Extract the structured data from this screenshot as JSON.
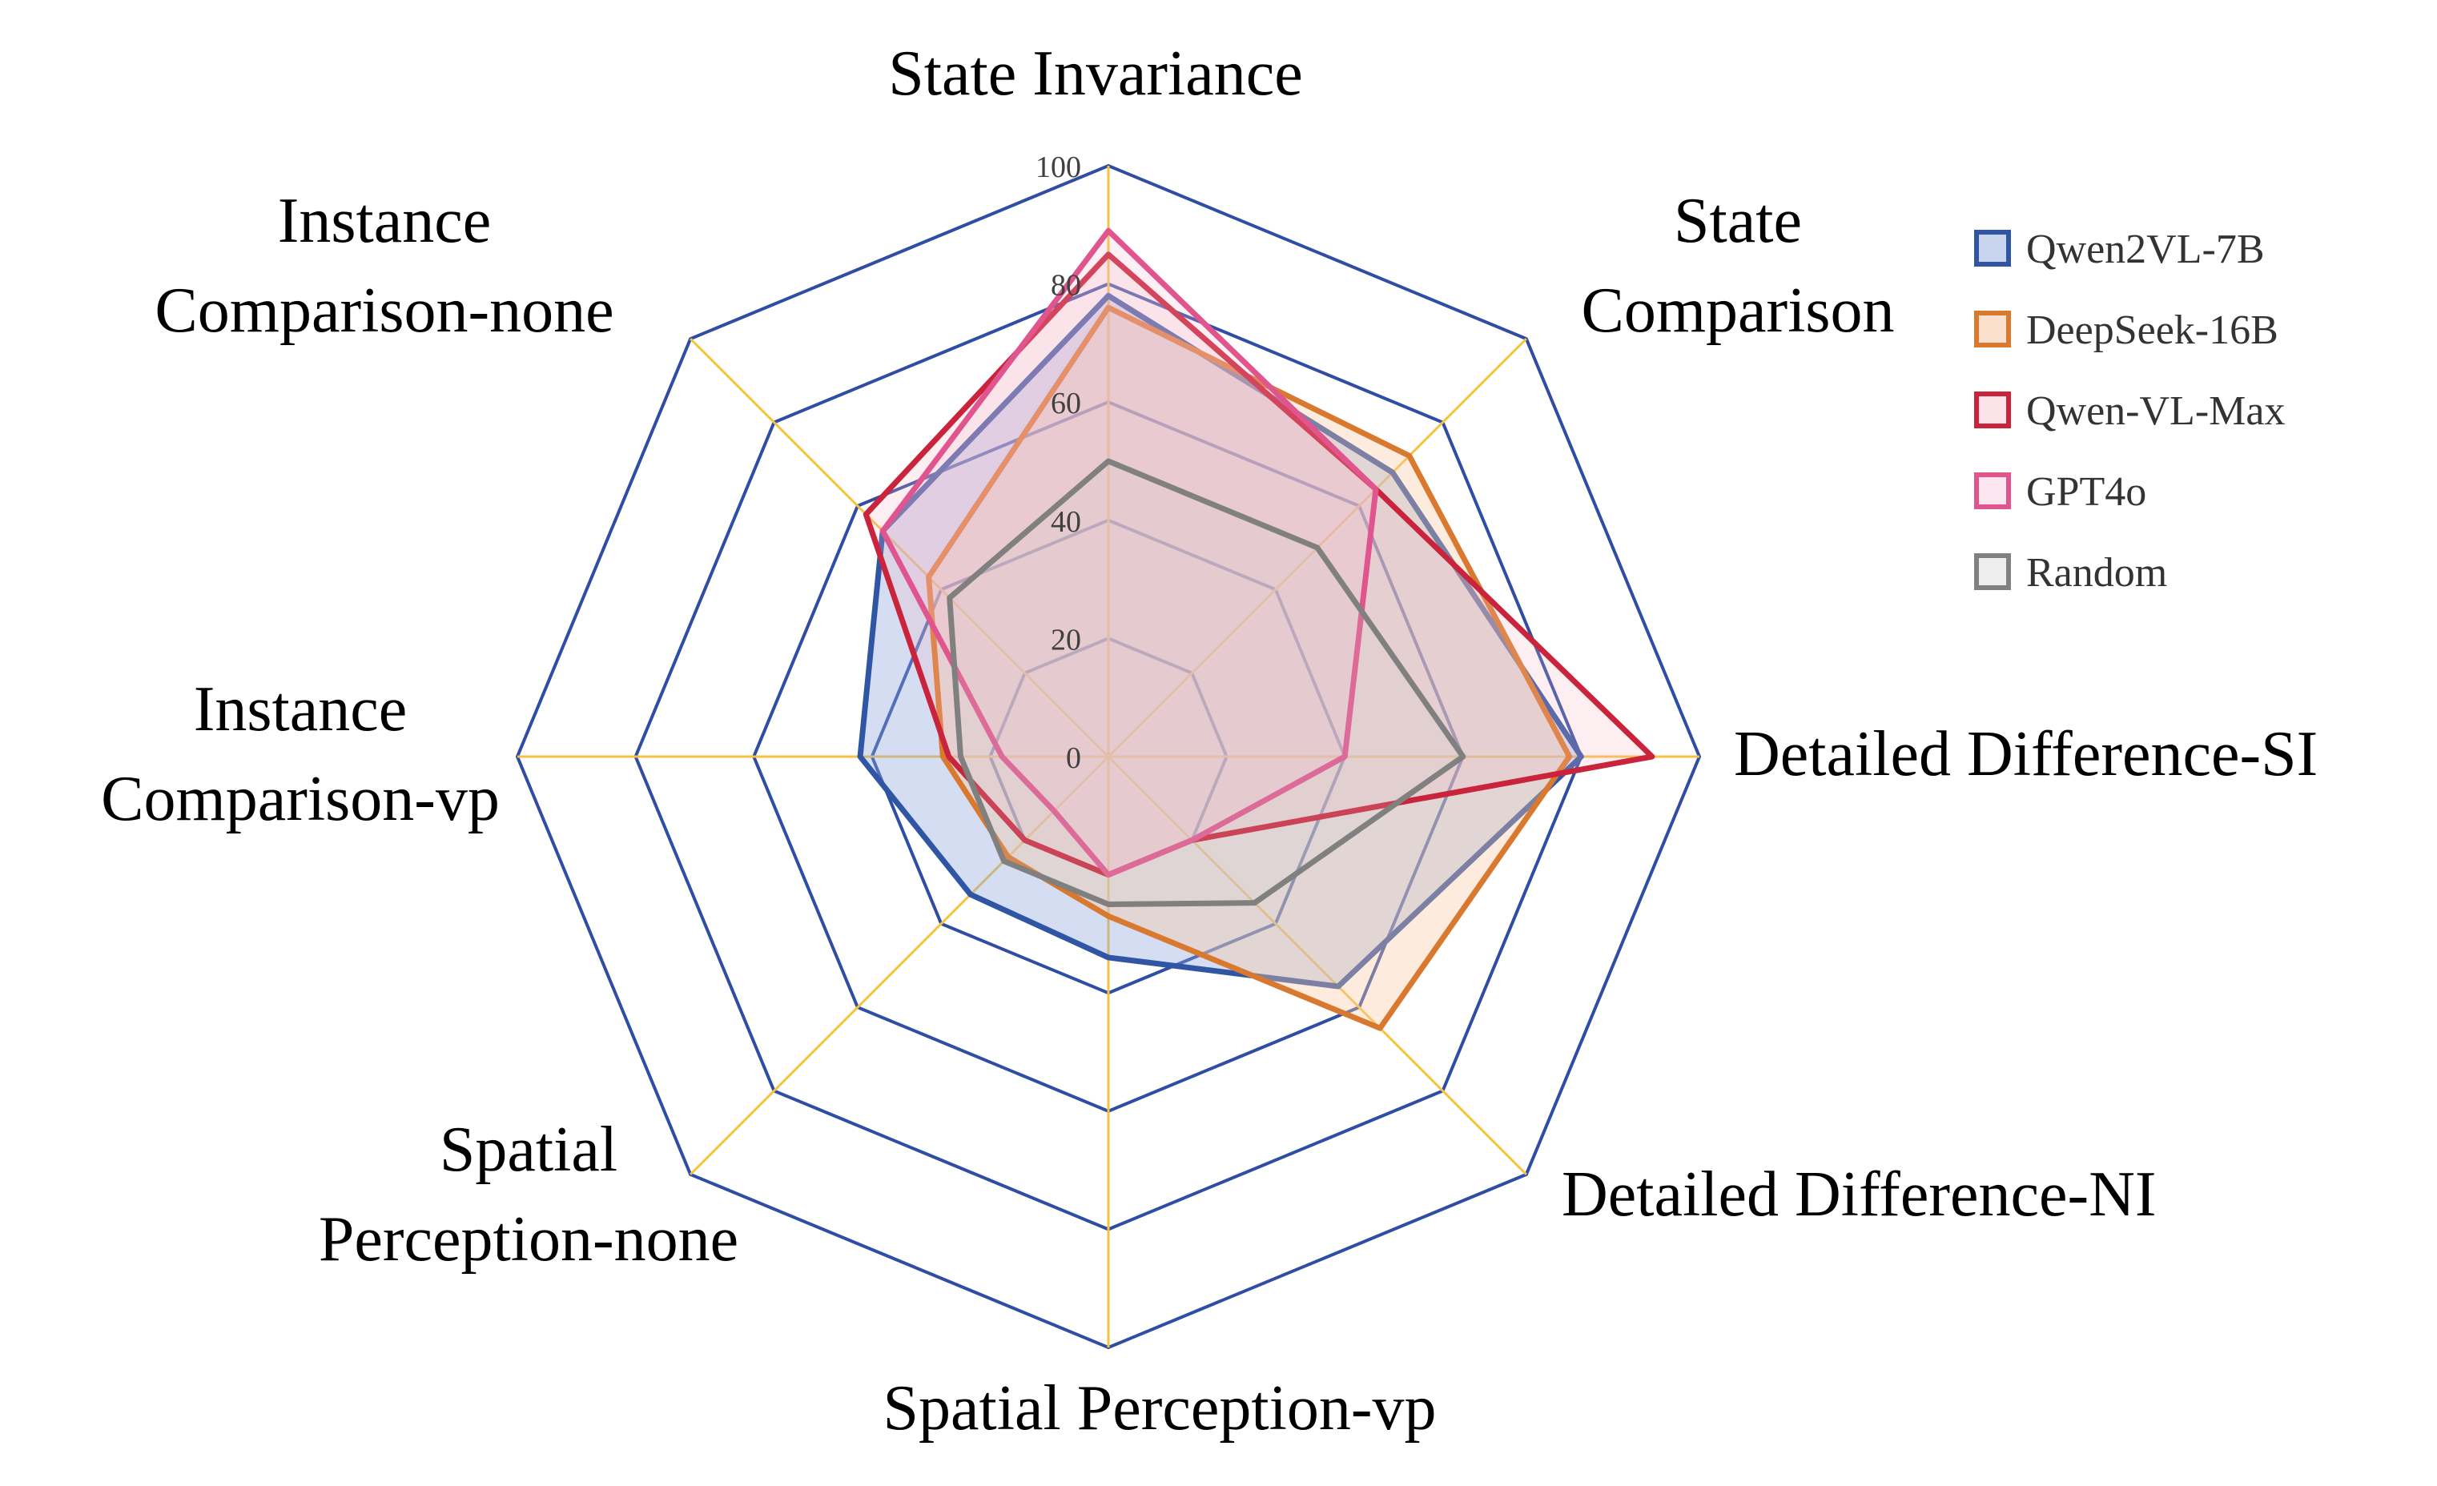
{
  "chart_data": {
    "type": "radar",
    "title": "",
    "axes": [
      {
        "label": [
          "State Invariance"
        ]
      },
      {
        "label": [
          "State",
          "Comparison"
        ]
      },
      {
        "label": [
          "Detailed Difference-SI"
        ]
      },
      {
        "label": [
          "Detailed Difference-NI"
        ]
      },
      {
        "label": [
          "Spatial Perception-vp"
        ]
      },
      {
        "label": [
          "Spatial",
          "Perception-none"
        ]
      },
      {
        "label": [
          "Instance",
          "Comparison-vp"
        ]
      },
      {
        "label": [
          "Instance",
          "Comparison-none"
        ]
      }
    ],
    "ticks": [
      0,
      20,
      40,
      60,
      80,
      100
    ],
    "range": [
      0,
      100
    ],
    "grid_colors": {
      "ring": "#2f4ea3",
      "spoke": "#f5c242"
    },
    "legend_position": "top-right",
    "series": [
      {
        "name": "Qwen2VL-7B",
        "values": [
          78,
          68,
          80,
          55,
          34,
          33,
          42,
          54
        ],
        "line_color": "#2f55a4",
        "fill_color": "#8fa6dd",
        "fill_opacity": 0.38,
        "fill_legend": "#c9d4ef"
      },
      {
        "name": "DeepSeek-16B",
        "values": [
          76,
          72,
          78,
          65,
          27,
          24,
          28,
          43
        ],
        "line_color": "#d9782f",
        "fill_color": "#f9caa5",
        "fill_opacity": 0.38,
        "fill_legend": "#fbe1cd"
      },
      {
        "name": "Qwen-VL-Max",
        "values": [
          85,
          64,
          92,
          20,
          20,
          20,
          27,
          58
        ],
        "line_color": "#c9243b",
        "fill_color": "#f4b6c0",
        "fill_opacity": 0.22,
        "fill_legend": "#fbe3e7"
      },
      {
        "name": "GPT4o",
        "values": [
          89,
          64,
          40,
          20,
          20,
          13,
          18,
          54
        ],
        "line_color": "#e0558e",
        "fill_color": "#f5bcd3",
        "fill_opacity": 0.22,
        "fill_legend": "#fbe6ef"
      },
      {
        "name": "Random",
        "values": [
          50,
          50,
          60,
          35,
          25,
          25,
          25,
          38
        ],
        "line_color": "#808080",
        "fill_color": "#d0d0d0",
        "fill_opacity": 0.18,
        "fill_legend": "#eeeeee"
      }
    ]
  }
}
